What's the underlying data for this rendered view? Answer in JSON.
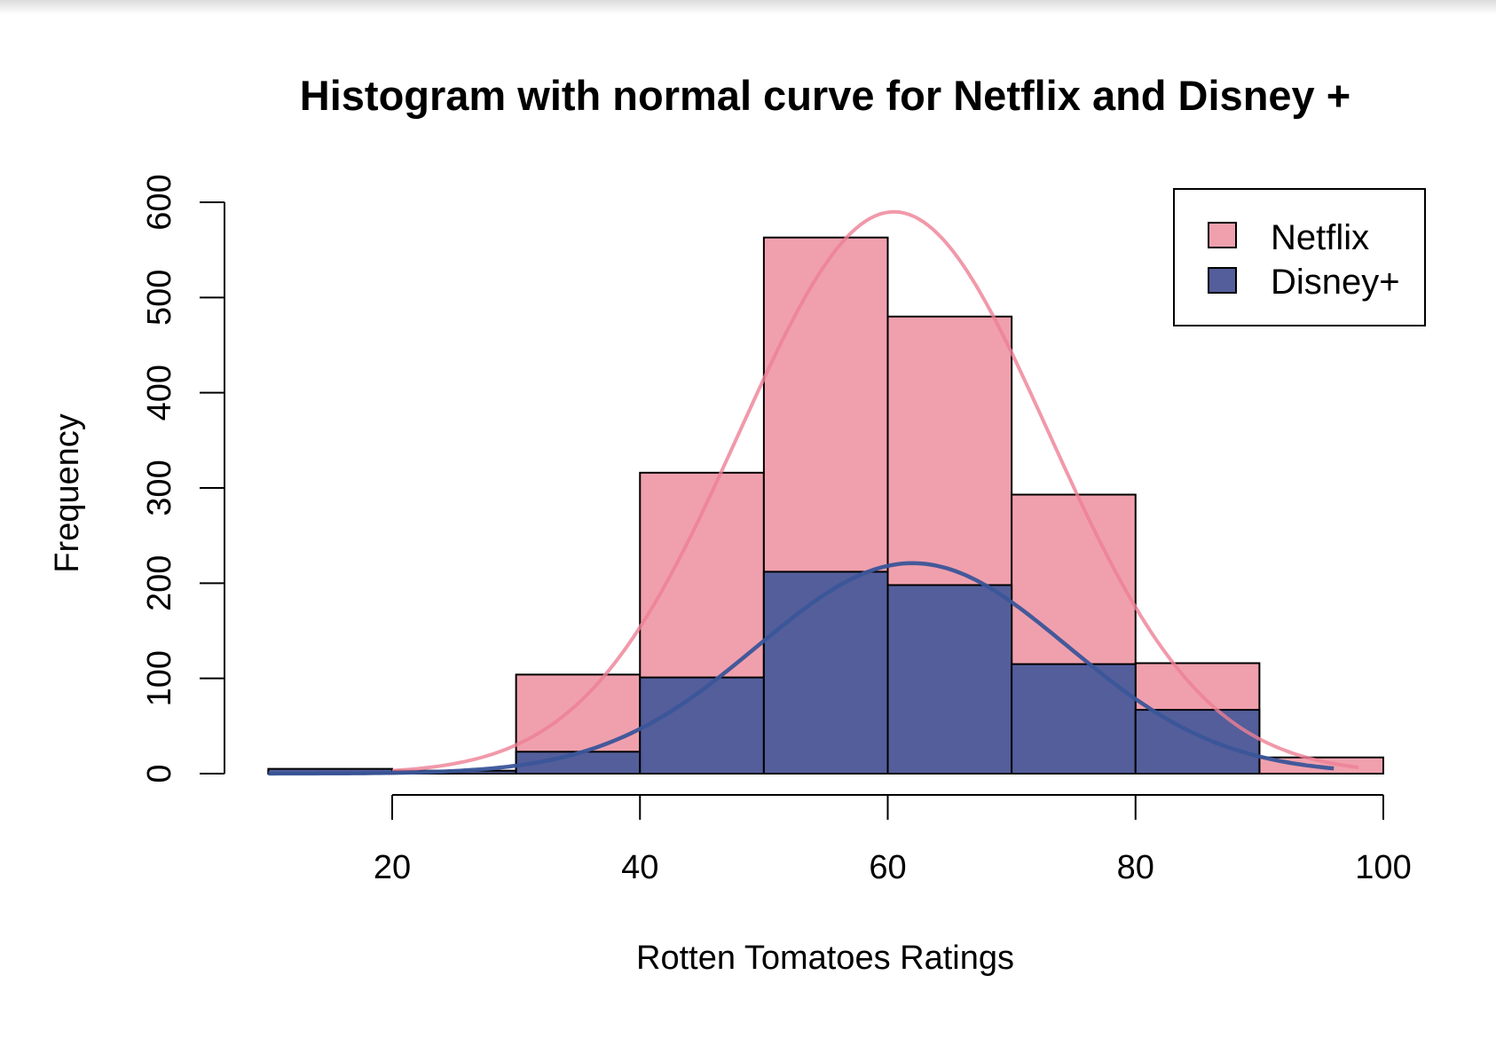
{
  "chart_data": {
    "type": "bar",
    "title": "Histogram with normal curve for Netflix and Disney +",
    "xlabel": "Rotten Tomatoes Ratings",
    "ylabel": "Frequency",
    "bins": [
      [
        10,
        20
      ],
      [
        20,
        30
      ],
      [
        30,
        40
      ],
      [
        40,
        50
      ],
      [
        50,
        60
      ],
      [
        60,
        70
      ],
      [
        70,
        80
      ],
      [
        80,
        90
      ],
      [
        90,
        100
      ]
    ],
    "xlim": [
      10,
      100
    ],
    "ylim": [
      0,
      600
    ],
    "x_ticks": [
      20,
      40,
      60,
      80,
      100
    ],
    "y_ticks": [
      0,
      100,
      200,
      300,
      400,
      500,
      600
    ],
    "series": [
      {
        "name": "Netflix",
        "color": "#f0a0ad",
        "curve_color": "#ee7f95",
        "values": [
          3,
          3,
          104,
          316,
          563,
          480,
          293,
          116,
          17
        ],
        "normal_curve": {
          "mean": 60.5,
          "sd": 12.5,
          "peak": 590,
          "range": [
            20,
            98
          ]
        }
      },
      {
        "name": "Disney+",
        "color": "#535e9b",
        "curve_color": "#3a5599",
        "values": [
          5,
          3,
          23,
          101,
          212,
          198,
          115,
          67,
          0
        ],
        "normal_curve": {
          "mean": 62,
          "sd": 12.5,
          "peak": 221,
          "range": [
            10,
            96
          ]
        }
      }
    ],
    "legend": {
      "position": "top-right",
      "entries": [
        "Netflix",
        "Disney+"
      ]
    },
    "grid": false
  }
}
